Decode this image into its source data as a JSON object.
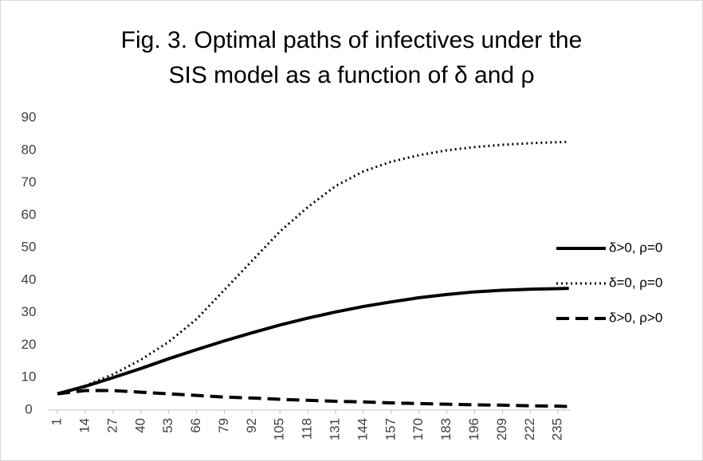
{
  "chart_data": {
    "type": "line",
    "title": [
      "Fig. 3. Optimal  paths of infectives under the",
      "SIS model  as a function of δ and ρ"
    ],
    "x": [
      1,
      14,
      27,
      40,
      53,
      66,
      79,
      92,
      105,
      118,
      131,
      144,
      157,
      170,
      183,
      196,
      209,
      222,
      235,
      240
    ],
    "xlim": [
      -3.5,
      240.5
    ],
    "xticks": [
      1,
      14,
      27,
      40,
      53,
      66,
      79,
      92,
      105,
      118,
      131,
      144,
      157,
      170,
      183,
      196,
      209,
      222,
      235
    ],
    "ylim": [
      0,
      90
    ],
    "yticks": [
      0,
      10,
      20,
      30,
      40,
      50,
      60,
      70,
      80,
      90
    ],
    "grid": false,
    "legend": "right",
    "series": [
      {
        "name": "δ>0, ρ=0",
        "color": "#000000",
        "dash": "solid",
        "values": [
          5,
          7.3,
          10,
          12.8,
          15.8,
          18.6,
          21.3,
          23.8,
          26.2,
          28.3,
          30.2,
          31.9,
          33.3,
          34.6,
          35.6,
          36.4,
          36.9,
          37.2,
          37.4,
          37.5
        ]
      },
      {
        "name": "δ=0, ρ=0",
        "color": "#000000",
        "dash": "dotted",
        "values": [
          5,
          7.5,
          11,
          15.5,
          21,
          28,
          37,
          46,
          55,
          62.5,
          69,
          73.5,
          76.5,
          78.5,
          80,
          81,
          81.7,
          82.2,
          82.5,
          82.6
        ]
      },
      {
        "name": "δ>0, ρ>0",
        "color": "#000000",
        "dash": "dashed",
        "values": [
          5,
          6,
          6,
          5.5,
          5,
          4.5,
          4,
          3.7,
          3.3,
          3,
          2.7,
          2.5,
          2.2,
          2,
          1.8,
          1.6,
          1.5,
          1.3,
          1.2,
          1.1
        ]
      }
    ]
  }
}
